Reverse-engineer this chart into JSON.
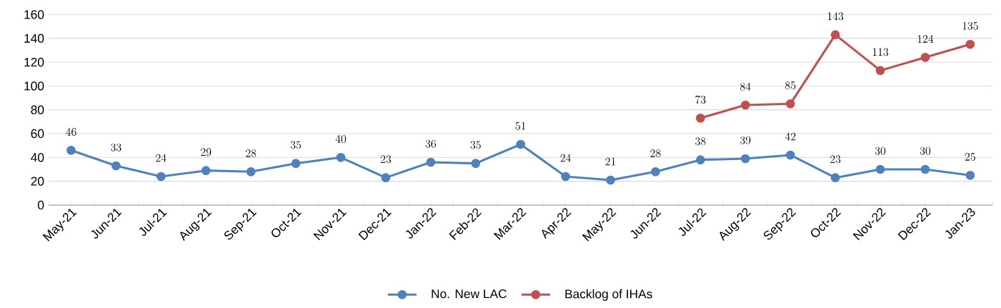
{
  "chart_data": {
    "type": "line",
    "categories": [
      "May-21",
      "Jun-21",
      "Jul-21",
      "Aug-21",
      "Sep-21",
      "Oct-21",
      "Nov-21",
      "Dec-21",
      "Jan-22",
      "Feb-22",
      "Mar-22",
      "Apr-22",
      "May-22",
      "Jun-22",
      "Jul-22",
      "Aug-22",
      "Sep-22",
      "Oct-22",
      "Nov-22",
      "Dec-22",
      "Jan-23"
    ],
    "series": [
      {
        "name": "No. New LAC",
        "color": "#4f81bd",
        "values": [
          46,
          33,
          24,
          29,
          28,
          35,
          40,
          23,
          36,
          35,
          51,
          24,
          21,
          28,
          38,
          39,
          42,
          23,
          30,
          30,
          25
        ]
      },
      {
        "name": "Backlog of IHAs",
        "color": "#c0504d",
        "values": [
          null,
          null,
          null,
          null,
          null,
          null,
          null,
          null,
          null,
          null,
          null,
          null,
          null,
          null,
          73,
          84,
          85,
          143,
          113,
          124,
          135
        ]
      }
    ],
    "ylim": [
      0,
      160
    ],
    "yticks": [
      0,
      20,
      40,
      60,
      80,
      100,
      120,
      140,
      160
    ],
    "grid": "y",
    "legend": "bottom",
    "marker": "circle",
    "line_style": "solid",
    "data_labels": true
  }
}
